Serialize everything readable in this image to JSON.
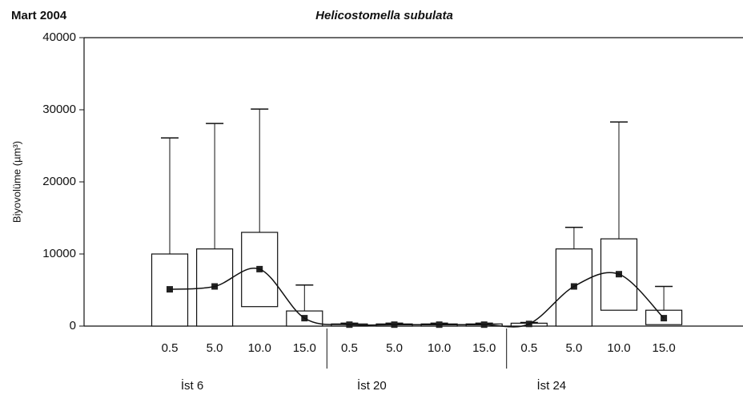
{
  "chart_data": {
    "type": "box",
    "corner_label": "Mart 2004",
    "title": "Helicostomella subulata",
    "y_label": "Biyovolüme (µm³)",
    "categories": [
      "0.5",
      "5.0",
      "10.0",
      "15.0",
      "0.5",
      "5.0",
      "10.0",
      "15.0",
      "0.5",
      "5.0",
      "10.0",
      "15.0"
    ],
    "groups": [
      "İst 6",
      "İst 20",
      "İst 24"
    ],
    "mean": [
      5100,
      5500,
      7900,
      1100,
      200,
      200,
      200,
      200,
      300,
      5500,
      7200,
      1100
    ],
    "box_low": [
      0,
      0,
      2700,
      0,
      0,
      0,
      0,
      0,
      0,
      0,
      2200,
      200
    ],
    "box_high": [
      10000,
      10700,
      13000,
      2100,
      300,
      300,
      300,
      300,
      400,
      10700,
      12100,
      2200
    ],
    "whisker_high": [
      26100,
      28100,
      30100,
      5700,
      400,
      400,
      400,
      400,
      500,
      13700,
      28300,
      5500
    ],
    "ylim": [
      0,
      40000
    ],
    "yticks": [
      0,
      10000,
      20000,
      30000,
      40000
    ]
  }
}
